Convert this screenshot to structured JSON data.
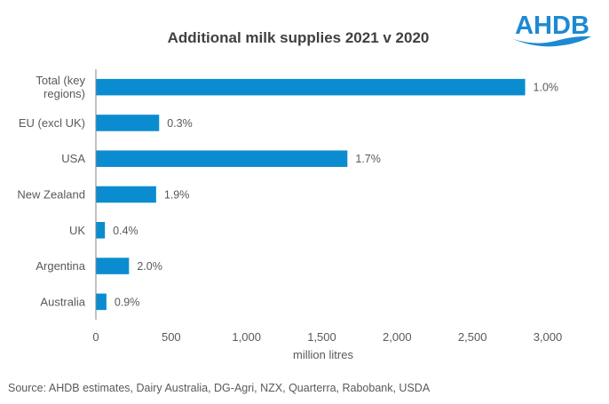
{
  "brand": {
    "logo_text": "AHDB",
    "logo_color": "#1B8AD3"
  },
  "chart_data": {
    "type": "bar",
    "orientation": "horizontal",
    "title": "Additional milk supplies 2021 v 2020",
    "xlabel": "million litres",
    "ylabel": "",
    "categories": [
      "Total (key regions)",
      "EU (excl UK)",
      "USA",
      "New Zealand",
      "UK",
      "Argentina",
      "Australia"
    ],
    "category_lines": [
      [
        "Total (key",
        "regions)"
      ],
      [
        "EU (excl UK)"
      ],
      [
        "USA"
      ],
      [
        "New Zealand"
      ],
      [
        "UK"
      ],
      [
        "Argentina"
      ],
      [
        "Australia"
      ]
    ],
    "values": [
      2850,
      420,
      1670,
      400,
      60,
      220,
      70
    ],
    "data_labels": [
      "1.0%",
      "0.3%",
      "1.7%",
      "1.9%",
      "0.4%",
      "2.0%",
      "0.9%"
    ],
    "xlim": [
      0,
      3000
    ],
    "xticks": [
      0,
      500,
      1000,
      1500,
      2000,
      2500,
      3000
    ],
    "xtick_labels": [
      "0",
      "500",
      "1,000",
      "1,500",
      "2,000",
      "2,500",
      "3,000"
    ],
    "grid": false,
    "legend": "none",
    "bar_color": "#0B8CD0",
    "source": "Source: AHDB estimates, Dairy Australia, DG-Agri, NZX,  Quarterra,  Rabobank,  USDA"
  }
}
